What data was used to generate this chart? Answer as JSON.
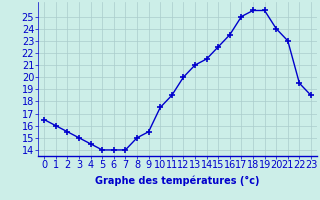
{
  "hours": [
    0,
    1,
    2,
    3,
    4,
    5,
    6,
    7,
    8,
    9,
    10,
    11,
    12,
    13,
    14,
    15,
    16,
    17,
    18,
    19,
    20,
    21,
    22,
    23
  ],
  "temps": [
    16.5,
    16.0,
    15.5,
    15.0,
    14.5,
    14.0,
    14.0,
    14.0,
    15.0,
    15.5,
    17.5,
    18.5,
    20.0,
    21.0,
    21.5,
    22.5,
    23.5,
    25.0,
    25.5,
    25.5,
    24.0,
    23.0,
    19.5,
    18.5
  ],
  "line_color": "#0000cc",
  "marker": "+",
  "marker_size": 5,
  "marker_lw": 1.2,
  "line_width": 1.0,
  "bg_color": "#cceee8",
  "grid_color": "#aacccc",
  "xlabel": "Graphe des températures (°c)",
  "ylabel_ticks": [
    14,
    15,
    16,
    17,
    18,
    19,
    20,
    21,
    22,
    23,
    24,
    25
  ],
  "ylim": [
    13.5,
    26.2
  ],
  "xlim": [
    -0.5,
    23.5
  ],
  "xtick_labels": [
    "0",
    "1",
    "2",
    "3",
    "4",
    "5",
    "6",
    "7",
    "8",
    "9",
    "10",
    "11",
    "12",
    "13",
    "14",
    "15",
    "16",
    "17",
    "18",
    "19",
    "20",
    "21",
    "22",
    "23"
  ],
  "xlabel_color": "#0000cc",
  "xlabel_fontsize": 7,
  "tick_color": "#0000cc",
  "tick_fontsize": 7,
  "spine_color": "#0000cc",
  "spine_bottom_color": "#0000cc"
}
